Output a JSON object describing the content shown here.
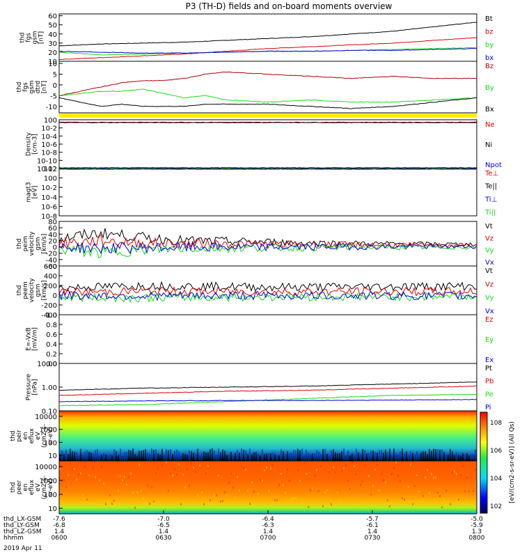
{
  "title": "P3 (TH-D) fields and on-board moments overview",
  "colors": {
    "black": "#000000",
    "red": "#dd0000",
    "green": "#11dd11",
    "blue": "#0000dd",
    "darkred": "#aa0000",
    "yellow": "#ffee00"
  },
  "chart_data": [
    {
      "type": "line",
      "ylabel": [
        "thd",
        "fgs",
        "gsm",
        "[nT]"
      ],
      "yticks": [
        "10",
        "20",
        "30",
        "40",
        "50",
        "60"
      ],
      "ylim": [
        10,
        62
      ],
      "series": [
        {
          "name": "Bt",
          "color": "#000000",
          "x": [
            0,
            0.1,
            0.2,
            0.3,
            0.4,
            0.5,
            0.6,
            0.7,
            0.8,
            0.9,
            1
          ],
          "values": [
            27,
            29,
            30,
            31,
            33,
            35,
            37,
            40,
            43,
            48,
            53
          ]
        },
        {
          "name": "bz",
          "color": "#dd0000",
          "x": [
            0,
            0.1,
            0.2,
            0.3,
            0.4,
            0.5,
            0.6,
            0.7,
            0.8,
            0.9,
            1
          ],
          "values": [
            12,
            14,
            16,
            18,
            21,
            24,
            26,
            28,
            30,
            33,
            36
          ]
        },
        {
          "name": "by",
          "color": "#11dd11",
          "x": [
            0,
            0.1,
            0.2,
            0.3,
            0.4,
            0.5,
            0.6,
            0.7,
            0.8,
            0.9,
            1
          ],
          "values": [
            20,
            17,
            18,
            19,
            20,
            21,
            21,
            22,
            23,
            24,
            25
          ]
        },
        {
          "name": "bx",
          "color": "#0000dd",
          "x": [
            0,
            0.1,
            0.2,
            0.3,
            0.4,
            0.5,
            0.6,
            0.7,
            0.8,
            0.9,
            1
          ],
          "values": [
            21,
            20,
            19,
            19,
            20,
            21,
            21,
            22,
            22,
            23,
            24
          ]
        }
      ]
    },
    {
      "type": "line",
      "ylabel": [
        "thd",
        "fgs",
        "gsm",
        "dtrd",
        "[nT]"
      ],
      "yticks": [
        "-10",
        "-5",
        "0",
        "5",
        "10"
      ],
      "ylim": [
        -13,
        11
      ],
      "series": [
        {
          "name": "Bz",
          "color": "#aa0000",
          "x": [
            0,
            0.05,
            0.1,
            0.15,
            0.2,
            0.25,
            0.3,
            0.35,
            0.4,
            0.5,
            0.6,
            0.7,
            0.8,
            0.9,
            1
          ],
          "values": [
            -5,
            -3,
            -1,
            1,
            2,
            2,
            3,
            5,
            6,
            5,
            4,
            3,
            4,
            3,
            3
          ]
        },
        {
          "name": "By",
          "color": "#11dd11",
          "x": [
            0,
            0.05,
            0.1,
            0.15,
            0.2,
            0.25,
            0.3,
            0.35,
            0.4,
            0.5,
            0.6,
            0.7,
            0.8,
            0.9,
            1
          ],
          "values": [
            -5,
            -4,
            -3,
            -3,
            -2,
            -4,
            -6,
            -5,
            -7,
            -8,
            -7,
            -8,
            -8,
            -7,
            -6
          ]
        },
        {
          "name": "Bx",
          "color": "#000000",
          "x": [
            0,
            0.05,
            0.1,
            0.15,
            0.2,
            0.25,
            0.3,
            0.35,
            0.4,
            0.5,
            0.6,
            0.7,
            0.8,
            0.9,
            1
          ],
          "values": [
            -6,
            -8,
            -10,
            -9,
            -10,
            -10,
            -10,
            -9,
            -9,
            -9,
            -10,
            -11,
            -10,
            -8,
            -6
          ]
        }
      ]
    },
    {
      "type": "line",
      "ylabel": [
        "Density",
        "[cm-3]"
      ],
      "yticks": [
        "10-12",
        "10-10",
        "10-8",
        "10-6",
        "10-4",
        "10-2",
        "100"
      ],
      "ylim": [
        -12.5,
        0.8
      ],
      "series": [
        {
          "name": "Ne",
          "color": "#dd0000",
          "x": [
            0,
            1
          ],
          "values": [
            0,
            0
          ]
        },
        {
          "name": "Ni",
          "color": "#000000",
          "x": [
            0,
            1
          ],
          "values": [
            0.1,
            0.1
          ]
        },
        {
          "name": "Npot",
          "color": "#0000dd",
          "x": [
            0,
            1
          ],
          "values": [
            -12.3,
            -12.3
          ]
        }
      ]
    },
    {
      "type": "line",
      "ylabel": [
        "magt3",
        "[eV]"
      ],
      "yticks": [
        "10-8",
        "10-6",
        "10-4",
        "10-2",
        "100",
        "102"
      ],
      "ylim": [
        -9.5,
        3.2
      ],
      "series": [
        {
          "name": "Te⊥",
          "color": "#dd0000",
          "x": [
            0,
            1
          ],
          "values": [
            3,
            3
          ]
        },
        {
          "name": "Te||",
          "color": "#000000",
          "x": [
            0,
            1
          ],
          "values": [
            3,
            3
          ]
        },
        {
          "name": "Ti⊥",
          "color": "#0000dd",
          "x": [
            0,
            1
          ],
          "values": [
            3,
            3
          ]
        },
        {
          "name": "Ti||",
          "color": "#11dd11",
          "x": [
            0,
            1
          ],
          "values": [
            3,
            3
          ]
        }
      ]
    },
    {
      "type": "line",
      "ylabel": [
        "thd",
        "peim",
        "velocity",
        "gsm",
        "[km/s]"
      ],
      "yticks": [
        "-60",
        "-40",
        "-20",
        "0",
        "20",
        "40",
        "60",
        "80"
      ],
      "ylim": [
        -62,
        82
      ],
      "series": [
        {
          "name": "Vt",
          "color": "#000000",
          "x": [
            0,
            0.1,
            0.2,
            0.3,
            0.5,
            0.7,
            1
          ],
          "values": [
            25,
            45,
            30,
            20,
            15,
            10,
            8
          ]
        },
        {
          "name": "Vz",
          "color": "#dd0000",
          "x": [
            0,
            0.1,
            0.2,
            0.3,
            0.5,
            0.7,
            1
          ],
          "values": [
            10,
            20,
            12,
            10,
            8,
            6,
            5
          ]
        },
        {
          "name": "Vy",
          "color": "#11dd11",
          "x": [
            0,
            0.1,
            0.2,
            0.3,
            0.5,
            0.7,
            1
          ],
          "values": [
            -5,
            -20,
            -10,
            -5,
            -3,
            -2,
            -2
          ]
        },
        {
          "name": "Vx",
          "color": "#0000dd",
          "x": [
            0,
            0.1,
            0.2,
            0.3,
            0.5,
            0.7,
            1
          ],
          "values": [
            0,
            -5,
            -3,
            -2,
            -1,
            0,
            1
          ]
        }
      ]
    },
    {
      "type": "line",
      "ylabel": [
        "thd",
        "peem",
        "velocity",
        "gsm",
        "[km/s]"
      ],
      "yticks": [
        "-400",
        "-200",
        "0",
        "200",
        "400",
        "600"
      ],
      "ylim": [
        -420,
        620
      ],
      "series": [
        {
          "name": "Vt",
          "color": "#000000",
          "x": [
            0,
            0.2,
            0.5,
            1
          ],
          "values": [
            150,
            200,
            170,
            190
          ]
        },
        {
          "name": "Vz",
          "color": "#dd0000",
          "x": [
            0,
            0.2,
            0.5,
            1
          ],
          "values": [
            60,
            80,
            70,
            75
          ]
        },
        {
          "name": "Vy",
          "color": "#11dd11",
          "x": [
            0,
            0.2,
            0.5,
            1
          ],
          "values": [
            -50,
            -60,
            -40,
            -30
          ]
        },
        {
          "name": "Vx",
          "color": "#0000dd",
          "x": [
            0,
            0.2,
            0.5,
            1
          ],
          "values": [
            -10,
            -20,
            -10,
            -20
          ]
        }
      ]
    },
    {
      "type": "line",
      "ylabel": [
        "E=-VxB",
        "[mV/m]"
      ],
      "yticks": [
        "0.0",
        "0.2",
        "0.4",
        "0.6",
        "0.8",
        "1.0"
      ],
      "ylim": [
        0,
        1.0
      ],
      "series": [
        {
          "name": "Ez",
          "color": "#dd0000",
          "x": [],
          "values": []
        },
        {
          "name": "Ey",
          "color": "#11dd11",
          "x": [],
          "values": []
        },
        {
          "name": "Ex",
          "color": "#0000dd",
          "x": [],
          "values": []
        }
      ]
    },
    {
      "type": "line",
      "ylabel": [
        "Pressure",
        "[nPa]"
      ],
      "yticks": [
        "0.10",
        "1.00",
        "10.00"
      ],
      "ylim": [
        -1.3,
        1.0
      ],
      "series": [
        {
          "name": "Pt",
          "color": "#000000",
          "x": [
            0,
            0.2,
            0.4,
            0.6,
            0.8,
            1
          ],
          "values": [
            -0.3,
            -0.2,
            -0.15,
            -0.1,
            0.0,
            0.1
          ]
        },
        {
          "name": "Pb",
          "color": "#dd0000",
          "x": [
            0,
            0.2,
            0.4,
            0.6,
            0.8,
            1
          ],
          "values": [
            -0.55,
            -0.45,
            -0.35,
            -0.3,
            -0.2,
            -0.1
          ]
        },
        {
          "name": "Pe",
          "color": "#11dd11",
          "x": [
            0,
            0.2,
            0.4,
            0.6,
            0.8,
            1
          ],
          "values": [
            -1.05,
            -1.0,
            -0.85,
            -0.7,
            -0.55,
            -0.5
          ]
        },
        {
          "name": "Pi",
          "color": "#0000dd",
          "x": [
            0,
            0.2,
            0.4,
            0.6,
            0.8,
            1
          ],
          "values": [
            -0.85,
            -0.82,
            -0.8,
            -0.8,
            -0.78,
            -0.75
          ]
        }
      ]
    },
    {
      "type": "heatmap",
      "ylabel": [
        "thd",
        "peir",
        "en",
        "eflux",
        "eV",
        "(cm2-s-",
        "sr-eV)"
      ],
      "yticks": [
        "10",
        "100",
        "1000",
        "10000"
      ]
    },
    {
      "type": "heatmap",
      "ylabel": [
        "thd",
        "peer",
        "en",
        "eflux",
        "eV",
        "(cm2-s-",
        "sr-eV)"
      ],
      "yticks": [
        "10",
        "100",
        "1000",
        "10000"
      ]
    }
  ],
  "colorbar": {
    "label": "[eV/(cm2-s-sr-eV)] (All Qs)",
    "ticks": [
      "102",
      "104",
      "106",
      "108"
    ]
  },
  "bottom_axis": {
    "rows": [
      {
        "name": "thd_LX-GSM",
        "values": [
          "-7.6",
          "-7.0",
          "-6.4",
          "-5.7",
          "-5.0"
        ]
      },
      {
        "name": "thd_LY-GSM",
        "values": [
          "-6.8",
          "-6.5",
          "-6.3",
          "-6.1",
          "-5.9"
        ]
      },
      {
        "name": "thd_LZ-GSM",
        "values": [
          "1.4",
          "1.4",
          "1.4",
          "1.4",
          "1.3"
        ]
      },
      {
        "name": "hhmm",
        "values": [
          "0600",
          "0630",
          "0700",
          "0730",
          "0800"
        ]
      }
    ],
    "date": "2019 Apr 11"
  }
}
